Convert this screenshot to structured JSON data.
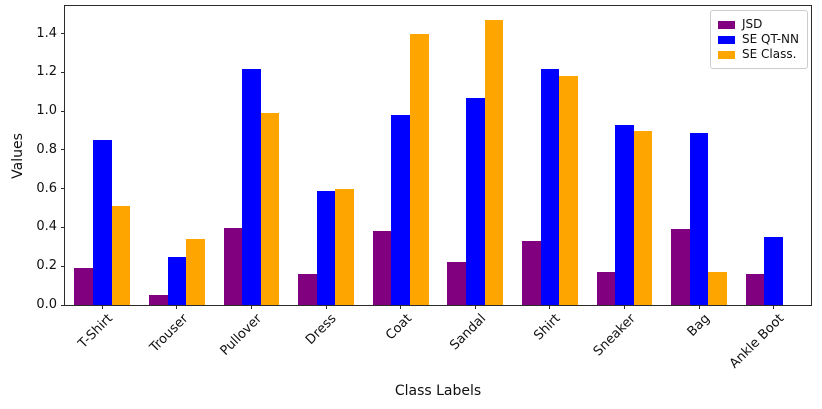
{
  "chart_data": {
    "type": "bar",
    "title": "",
    "xlabel": "Class Labels",
    "ylabel": "Values",
    "categories": [
      "T-Shirt",
      "Trouser",
      "Pullover",
      "Dress",
      "Coat",
      "Sandal",
      "Shirt",
      "Sneaker",
      "Bag",
      "Ankle Boot"
    ],
    "series": [
      {
        "name": "JSD",
        "color": "#800080",
        "values": [
          0.19,
          0.05,
          0.4,
          0.16,
          0.38,
          0.22,
          0.33,
          0.17,
          0.39,
          0.16
        ]
      },
      {
        "name": "SE QT-NN",
        "color": "#0000FF",
        "values": [
          0.85,
          0.25,
          1.22,
          0.59,
          0.98,
          1.07,
          1.22,
          0.93,
          0.89,
          0.35
        ]
      },
      {
        "name": "SE Class.",
        "color": "#FFA500",
        "values": [
          0.51,
          0.34,
          0.99,
          0.6,
          1.4,
          1.47,
          1.18,
          0.9,
          0.17,
          0.0
        ]
      }
    ],
    "ylim": [
      0,
      1.543
    ],
    "yticks": [
      "0.0",
      "0.2",
      "0.4",
      "0.6",
      "0.8",
      "1.0",
      "1.2",
      "1.4"
    ],
    "grid": false,
    "legend_position": "upper right",
    "bar_width_fraction": 0.25,
    "axis_color": "#2b2b2b"
  }
}
